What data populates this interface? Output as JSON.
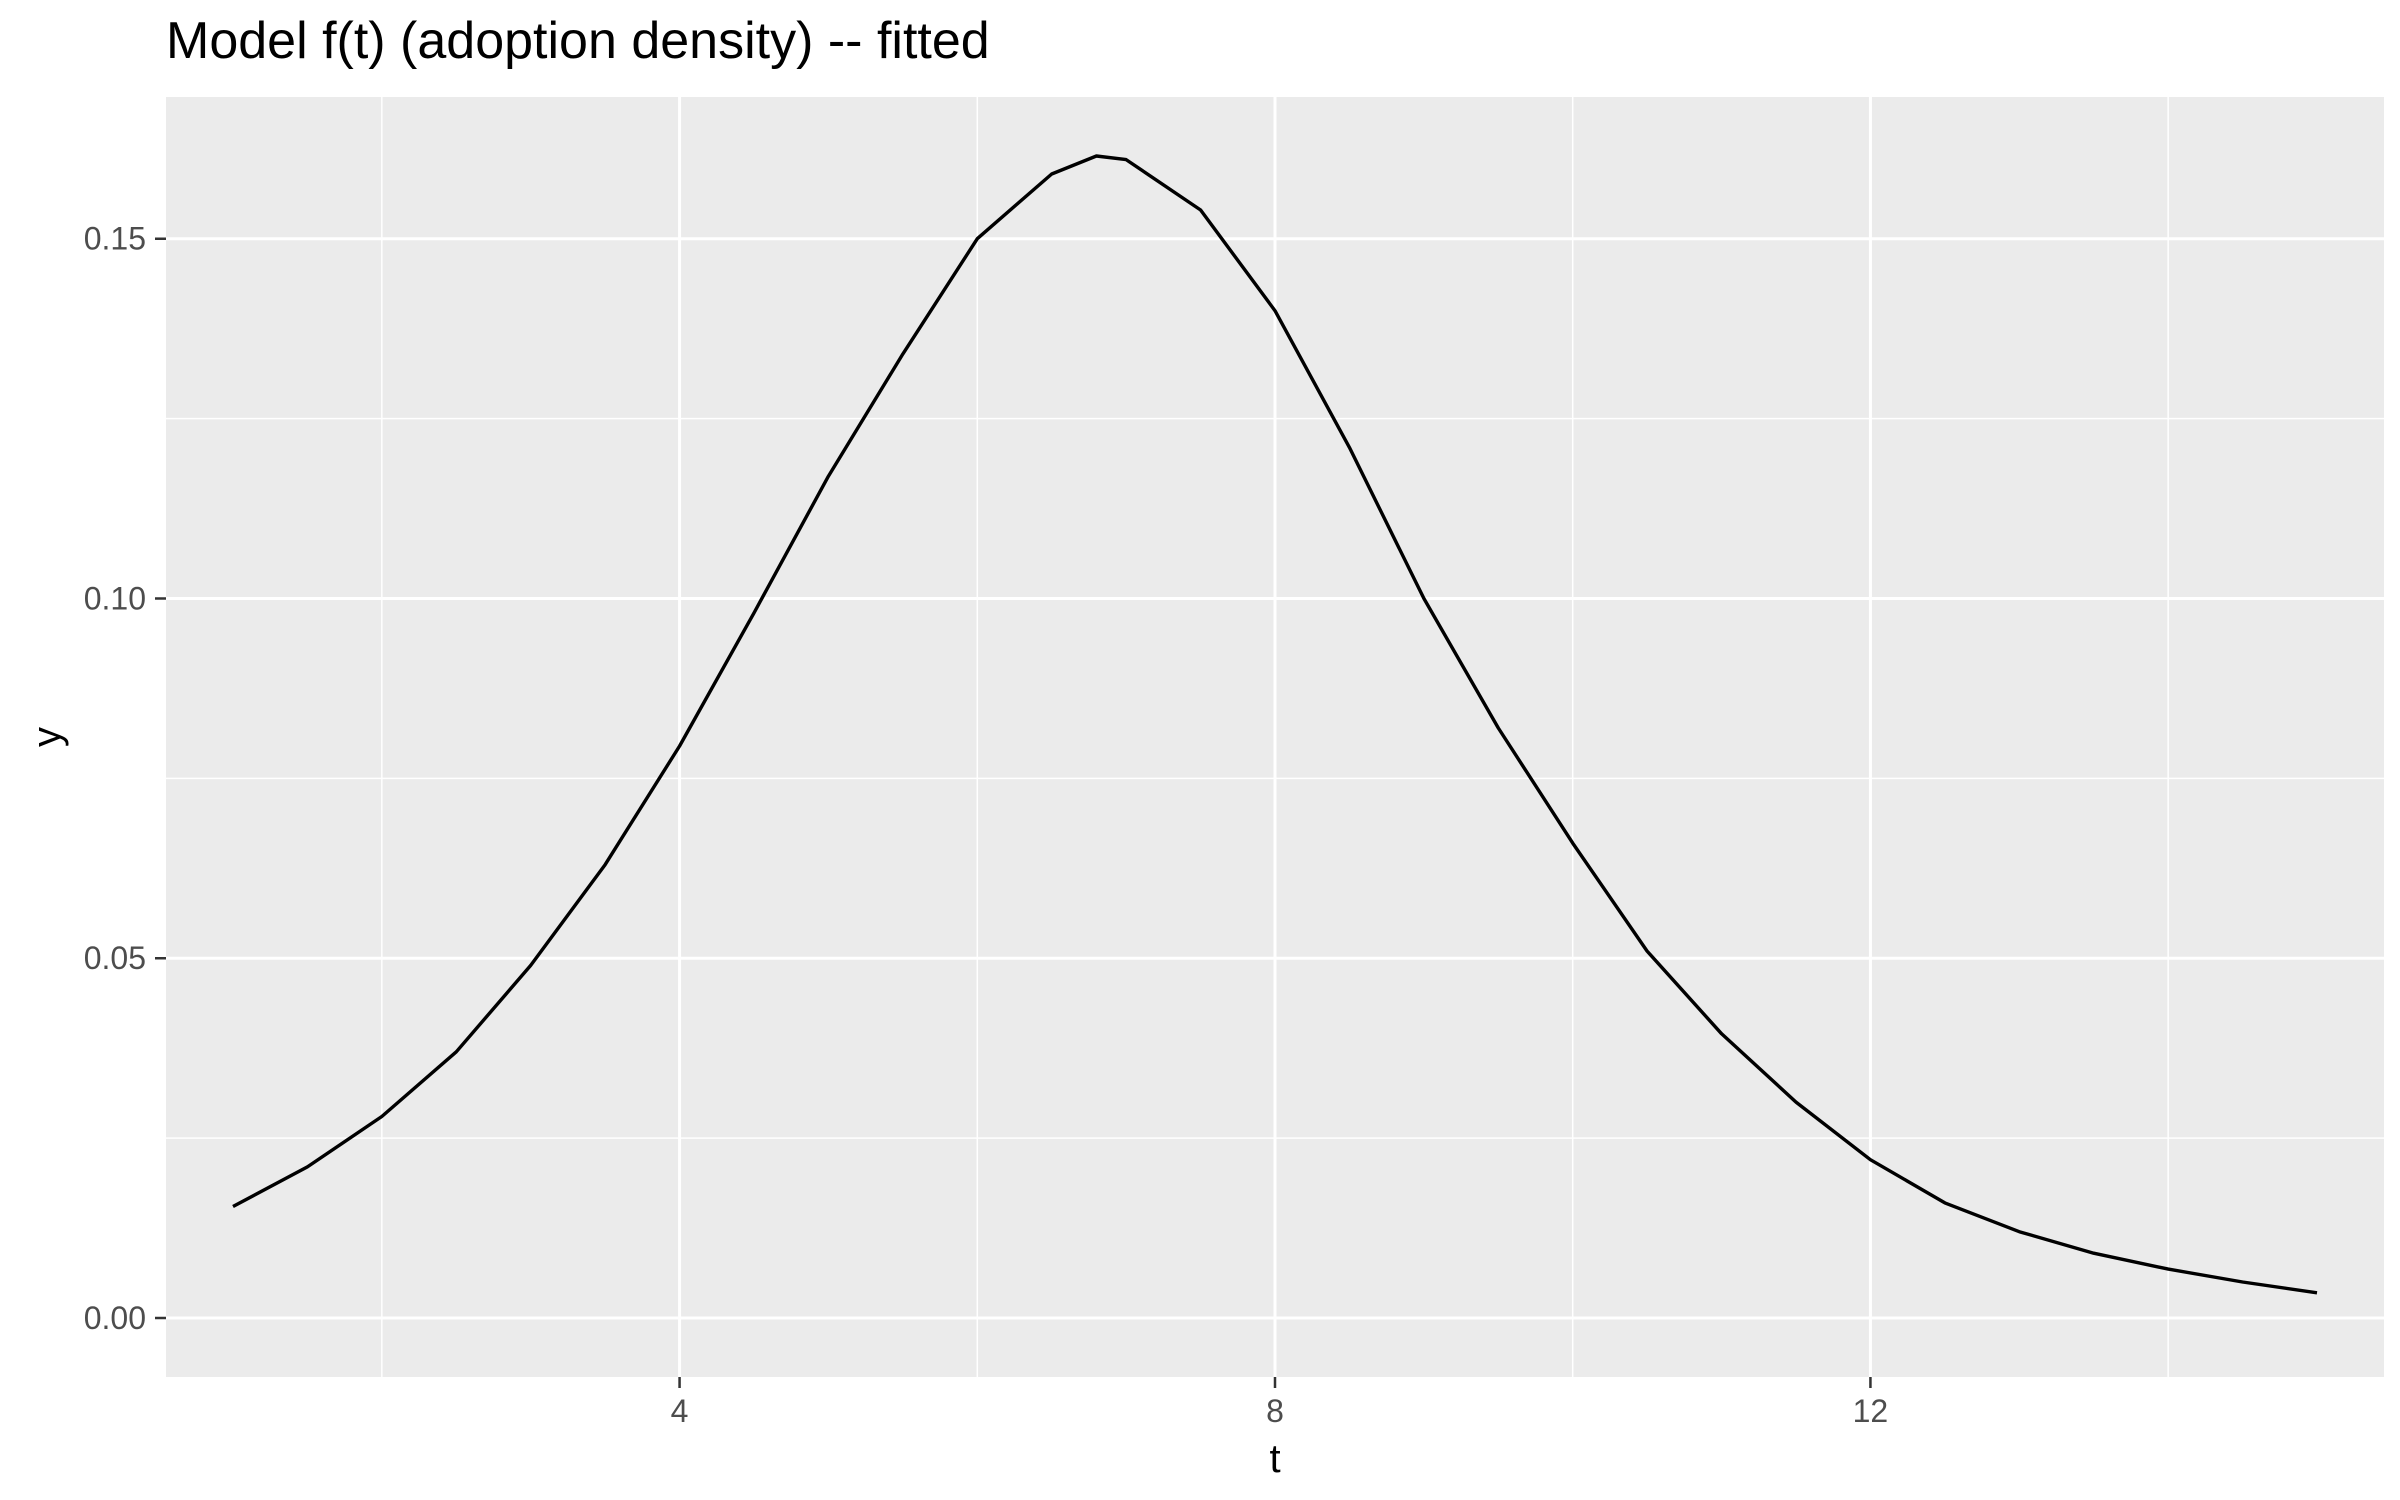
{
  "chart_data": {
    "type": "line",
    "title": "Model f(t) (adoption density) -- fitted",
    "xlabel": "t",
    "ylabel": "y",
    "xlim": [
      0.55,
      15.45
    ],
    "ylim": [
      -0.0082,
      0.1697
    ],
    "x_ticks": [
      4,
      8,
      12
    ],
    "x_tick_labels": [
      "4",
      "8",
      "12"
    ],
    "x_minor_ticks": [
      2,
      6,
      10,
      14
    ],
    "y_ticks": [
      0.0,
      0.05,
      0.1,
      0.15
    ],
    "y_tick_labels": [
      "0.00",
      "0.05",
      "0.10",
      "0.15"
    ],
    "y_minor_ticks": [
      0.025,
      0.075,
      0.125
    ],
    "grid": true,
    "panel_color": "#ebebeb",
    "grid_color": "#ffffff",
    "line_color": "#000000",
    "series": [
      {
        "x": [
          1.0,
          1.5,
          2.0,
          2.5,
          3.0,
          3.5,
          4.0,
          4.5,
          5.0,
          5.5,
          6.0,
          6.5,
          6.8,
          7.0,
          7.5,
          8.0,
          8.5,
          9.0,
          9.5,
          10.0,
          10.5,
          11.0,
          11.5,
          12.0,
          12.5,
          13.0,
          13.5,
          14.0,
          14.5,
          15.0
        ],
        "y": [
          0.0155,
          0.021,
          0.028,
          0.037,
          0.049,
          0.063,
          0.0795,
          0.098,
          0.117,
          0.134,
          0.15,
          0.159,
          0.1615,
          0.161,
          0.154,
          0.14,
          0.121,
          0.1,
          0.082,
          0.066,
          0.051,
          0.0395,
          0.03,
          0.022,
          0.016,
          0.012,
          0.009,
          0.0068,
          0.005,
          0.0035
        ]
      }
    ]
  }
}
